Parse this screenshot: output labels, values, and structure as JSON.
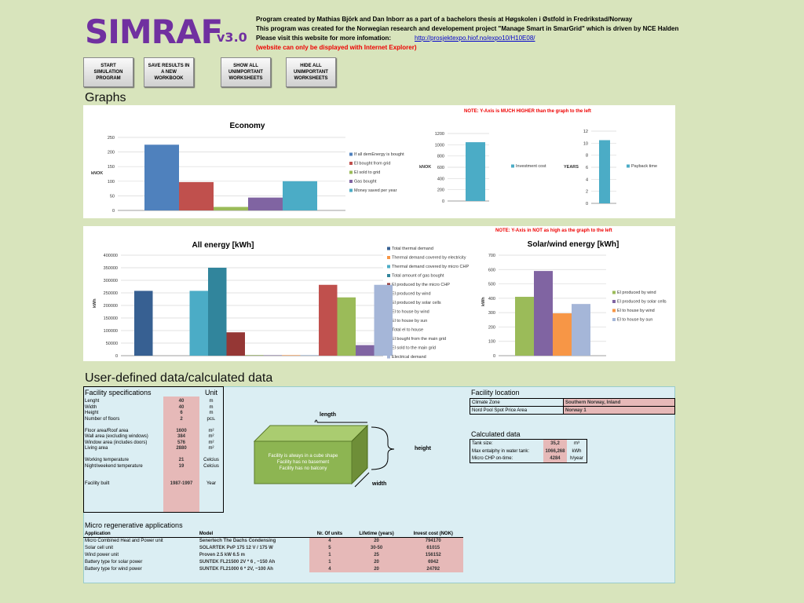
{
  "header": {
    "logo": "SIMRAF",
    "version": "v3.0",
    "line1": "Program created by Mathias Björk and Dan Inborr as a part of a bachelors thesis at Høgskolen i Østfold in Fredrikstad/Norway",
    "line2": "This program was created for the Norwegian research and developement project \"Manage Smart in SmarGrid\" which is driven by NCE Halden",
    "line3": "Please visit this website for more infomation:",
    "link": "http://prosjektexpo.hiof.no/expo10/H10E08/",
    "line4": "(website can only be displayed with Internet Explorer)"
  },
  "buttons": [
    "START SIMULATION PROGRAM",
    "SAVE RESULTS IN A NEW WORKBOOK",
    "SHOW ALL UNIMPORTANT WORKSHEETS",
    "HIDE ALL UNIMPORTANT WORKSHEETS"
  ],
  "sections": {
    "graphs": "Graphs",
    "user": "User-defined data/calculated data"
  },
  "notes": {
    "top": "NOTE: Y-Axis is MUCH HIGHER than the graph to the left",
    "bottom": "NOTE: Y-Axis in NOT as high as the graph to the left"
  },
  "colors": {
    "blue": "#4f81bd",
    "red": "#c0504d",
    "green": "#9bbb59",
    "purple": "#8064a2",
    "teal": "#4bacc6",
    "orange": "#f79646",
    "pale": "#a5b6d8"
  },
  "chart_data": [
    {
      "type": "bar",
      "title": "Economy",
      "ylabel": "kNOK",
      "ylim": [
        0,
        250
      ],
      "yticks": [
        0,
        50,
        100,
        150,
        200,
        250
      ],
      "series": [
        {
          "name": "If all demEnergy is bought",
          "values": [
            225
          ],
          "color": "#4f81bd"
        },
        {
          "name": "El bought from grid",
          "values": [
            97
          ],
          "color": "#c0504d"
        },
        {
          "name": "El sold to grid",
          "values": [
            12
          ],
          "color": "#9bbb59"
        },
        {
          "name": "Gas bought",
          "values": [
            44
          ],
          "color": "#8064a2"
        },
        {
          "name": "Money saved per year",
          "values": [
            100
          ],
          "color": "#4bacc6"
        }
      ]
    },
    {
      "type": "bar",
      "title": "",
      "ylabel": "kNOK",
      "ylim": [
        0,
        1200
      ],
      "yticks": [
        0,
        200,
        400,
        600,
        800,
        1000,
        1200
      ],
      "series": [
        {
          "name": "Investment cost",
          "values": [
            1045
          ],
          "color": "#4bacc6"
        }
      ]
    },
    {
      "type": "bar",
      "title": "",
      "ylabel": "YEARS",
      "ylim": [
        0,
        12
      ],
      "yticks": [
        0,
        2,
        4,
        6,
        8,
        10,
        12
      ],
      "series": [
        {
          "name": "Payback time",
          "values": [
            10.5
          ],
          "color": "#4bacc6"
        }
      ]
    },
    {
      "type": "bar",
      "title": "All energy [kWh]",
      "ylabel": "kWh",
      "ylim": [
        0,
        400000
      ],
      "yticks": [
        0,
        50000,
        100000,
        150000,
        200000,
        250000,
        300000,
        350000,
        400000
      ],
      "series": [
        {
          "name": "Total thermal demand",
          "values": [
            258000
          ],
          "color": "#376092"
        },
        {
          "name": "Thermal demand covered by electricity",
          "values": [
            0
          ],
          "color": "#f79646"
        },
        {
          "name": "Thermal demand covered by micro CHP",
          "values": [
            258000
          ],
          "color": "#4bacc6"
        },
        {
          "name": "Total amount of gas bought",
          "values": [
            350000
          ],
          "color": "#31859c"
        },
        {
          "name": "El produced by the  micro CHP",
          "values": [
            93000
          ],
          "color": "#953735"
        },
        {
          "name": "El produced by wind",
          "values": [
            2000
          ],
          "color": "#77933c"
        },
        {
          "name": "El produced by solar cells",
          "values": [
            1500
          ],
          "color": "#604a7b"
        },
        {
          "name": "El to house by wind",
          "values": [
            1500
          ],
          "color": "#e46c0a"
        },
        {
          "name": "El to house by sun",
          "values": [
            1000
          ],
          "color": "#4f81bd"
        },
        {
          "name": "Total el to house",
          "values": [
            282000
          ],
          "color": "#c0504d"
        },
        {
          "name": "El bought from the main grid",
          "values": [
            232000
          ],
          "color": "#9bbb59"
        },
        {
          "name": "El sold to the main grid",
          "values": [
            42000
          ],
          "color": "#8064a2"
        },
        {
          "name": "Electrical demand",
          "values": [
            282000
          ],
          "color": "#a5b6d8"
        }
      ]
    },
    {
      "type": "bar",
      "title": "Solar/wind energy [kWh]",
      "ylabel": "kWh",
      "ylim": [
        0,
        700
      ],
      "yticks": [
        0,
        100,
        200,
        300,
        400,
        500,
        600,
        700
      ],
      "series": [
        {
          "name": "El produced by wind",
          "values": [
            410
          ],
          "color": "#9bbb59"
        },
        {
          "name": "El produced by solar cells",
          "values": [
            590
          ],
          "color": "#8064a2"
        },
        {
          "name": "El to house by wind",
          "values": [
            295
          ],
          "color": "#f79646"
        },
        {
          "name": "El to house by sun",
          "values": [
            360
          ],
          "color": "#a5b6d8"
        }
      ]
    }
  ],
  "facility": {
    "title": "Facility specifications",
    "unit_hdr": "Unit",
    "rows": [
      [
        "Lenght",
        "40",
        "m"
      ],
      [
        "Width",
        "40",
        "m"
      ],
      [
        "Height",
        "6",
        "m"
      ],
      [
        "Number of floors",
        "2",
        "pcs."
      ],
      [
        "",
        "",
        ""
      ],
      [
        "Floor area/Roof area",
        "1600",
        "m²"
      ],
      [
        "Wall area (excluding windows)",
        "384",
        "m²"
      ],
      [
        "Window area (includes doors)",
        "576",
        "m²"
      ],
      [
        "Living area",
        "2880",
        "m²"
      ],
      [
        "",
        "",
        ""
      ],
      [
        "Working temperature",
        "21",
        "Celcius"
      ],
      [
        "Night/weekend temperature",
        "19",
        "Celcius"
      ],
      [
        "",
        "",
        ""
      ],
      [
        "",
        "",
        ""
      ],
      [
        "Facility built",
        "1987-1997",
        "Year"
      ]
    ]
  },
  "cube": {
    "text1": "Facility is always in a cube shape",
    "text2": "Facility has no basement",
    "text3": "Facility has no balcony",
    "length": "length",
    "height": "height",
    "width": "width"
  },
  "location": {
    "title": "Facility location",
    "rows": [
      [
        "Climate Zone",
        "Southern Norway, Inland"
      ],
      [
        "Nord Pool Spot Price Area",
        "Norway 1"
      ]
    ]
  },
  "calculated": {
    "title": "Calculated data",
    "rows": [
      [
        "Tank size:",
        "35,2",
        "m³"
      ],
      [
        "Max entalphy in water tank:",
        "1066,268",
        "kWh"
      ],
      [
        "Micro CHP on-time:",
        "4284",
        "h/year"
      ]
    ]
  },
  "micro": {
    "title": "Micro regenerative applications",
    "headers": [
      "Application",
      "Model",
      "Nr. Of units",
      "Lifetime (years)",
      "Invest cost (NOK)"
    ],
    "rows": [
      [
        "Micro Combined Heat and Power unit",
        "Senertech The Dachs Condensing",
        "4",
        "20",
        "794170"
      ],
      [
        "Solar cell unit",
        "SOLARTEK PvP 175 12 V / 175 W",
        "5",
        "30-50",
        "61015"
      ],
      [
        "Wind power unit",
        "Proven 2.5 kW 6.5 m",
        "1",
        "25",
        "156152"
      ],
      [
        "Battery type for solar power",
        "SUNTEK FL21500 2V * 6 , ~150 Ah",
        "1",
        "20",
        "6942"
      ],
      [
        "Battery type for wind power",
        "SUNTEK FL21000 6 * 2V, ~100 Ah",
        "4",
        "20",
        "24792"
      ]
    ]
  }
}
